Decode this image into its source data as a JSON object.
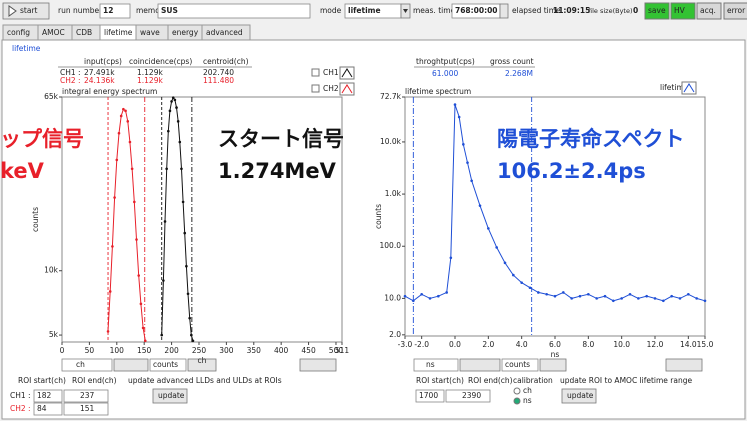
{
  "toolbar": {
    "start": "start",
    "run_label": "run number",
    "run": 12,
    "memo_label": "memo",
    "memo": "SUS",
    "mode_label": "mode",
    "mode": "lifetime",
    "meas_label": "meas. time",
    "meas": "768:00:00",
    "elapsed_label": "elapsed time",
    "elapsed": "11:09:15",
    "size_label": "file size(Byte)",
    "size": 0,
    "buttons": [
      "save",
      "HV",
      "acq.",
      "error"
    ]
  },
  "tabs": [
    "config",
    "AMOC",
    "CDB",
    "lifetime",
    "wave",
    "energy",
    "advanced"
  ],
  "page_label": "lifetime",
  "left_table": {
    "headers": [
      "input(cps)",
      "coincidence(cps)",
      "centroid(ch)"
    ],
    "rows": [
      [
        "CH1 :",
        "27.491k",
        "1.129k",
        "202.740"
      ],
      [
        "CH2 :",
        "24.136k",
        "1.129k",
        "111.480"
      ]
    ]
  },
  "left_panel": {
    "x_unit": "ch",
    "y_unit": "counts",
    "roi_headers": [
      "ROI start(ch)",
      "ROI end(ch)"
    ],
    "note": "update advanced LLDs and ULDs at ROIs",
    "rows": [
      {
        "label": "CH1 :",
        "start": 182,
        "end": 237
      },
      {
        "label": "CH2 :",
        "start": 84,
        "end": 151
      }
    ],
    "update": "update"
  },
  "right_stats": {
    "headers": [
      "throghtput(cps)",
      "gross count"
    ],
    "values": [
      "61.000",
      "2.268M"
    ]
  },
  "right_panel": {
    "x_unit": "ns",
    "y_unit": "counts",
    "roi_headers": [
      "ROI start(ch)",
      "ROI end(ch)"
    ],
    "calibration": "calibration",
    "options": [
      "ch",
      "ns"
    ],
    "note": "update ROI to AMOC lifetime range",
    "start": 1700,
    "end": 2390,
    "update": "update"
  },
  "annotations": [
    {
      "text": "ップ信号",
      "color": "#e8202a"
    },
    {
      "text": "keV",
      "color": "#e8202a"
    },
    {
      "text": "スタート信号",
      "color": "#111111"
    },
    {
      "text": "1.274MeV",
      "color": "#111111"
    },
    {
      "text": "陽電子寿命スペクト",
      "color": "#1f4fd6"
    },
    {
      "text": "106.2±2.4ps",
      "color": "#1f4fd6"
    }
  ],
  "chart_data": [
    {
      "type": "line",
      "title": "integral energy spectrum",
      "x_label": "ch",
      "y_label": "counts",
      "log_y": true,
      "markers": true,
      "xlim": [
        0,
        511
      ],
      "xticks": [
        0,
        50,
        100,
        150,
        200,
        250,
        300,
        350,
        400,
        450,
        500,
        511
      ],
      "ylim": [
        4640,
        65000
      ],
      "yticks": [
        {
          "value": 65000,
          "label": "65k"
        },
        {
          "value": 10000,
          "label": "10k"
        },
        {
          "value": 5000,
          "label": "5k"
        }
      ],
      "series": [
        {
          "name": "CH1",
          "color": "#111111",
          "x": [
            182,
            185,
            188,
            191,
            194,
            197,
            200,
            203,
            206,
            209,
            212,
            215,
            218,
            221,
            224,
            227,
            230,
            233,
            236,
            239
          ],
          "values": [
            5000,
            9000,
            17000,
            30000,
            45000,
            56000,
            62000,
            64500,
            63000,
            58000,
            50000,
            40000,
            30000,
            21000,
            15000,
            10500,
            7800,
            6000,
            5000,
            4700
          ]
        },
        {
          "name": "CH2",
          "color": "#e8202a",
          "x": [
            84,
            88,
            92,
            96,
            100,
            104,
            108,
            112,
            116,
            120,
            124,
            128,
            132,
            136,
            140,
            144,
            148,
            152
          ],
          "values": [
            5200,
            8000,
            13000,
            22000,
            33000,
            44000,
            53000,
            57000,
            56000,
            50000,
            40000,
            30000,
            21000,
            14000,
            9500,
            7000,
            5400,
            4700
          ]
        }
      ]
    },
    {
      "type": "line",
      "title": "lifetime spectrum",
      "x_label": "ns",
      "y_label": "counts",
      "log_y": true,
      "markers": true,
      "xlim": [
        -3,
        15
      ],
      "xticks": [
        {
          "value": -3,
          "label": "-3.0"
        },
        {
          "value": -2,
          "label": "-2.0"
        },
        {
          "value": 0,
          "label": "0.0"
        },
        {
          "value": 2,
          "label": "2.0"
        },
        {
          "value": 4,
          "label": "4.0"
        },
        {
          "value": 6,
          "label": "6.0"
        },
        {
          "value": 8,
          "label": "8.0"
        },
        {
          "value": 10,
          "label": "10.0"
        },
        {
          "value": 12,
          "label": "12.0"
        },
        {
          "value": 14,
          "label": "14.0"
        },
        {
          "value": 15,
          "label": "15.0"
        }
      ],
      "ylim": [
        1.9,
        72700
      ],
      "yticks": [
        {
          "value": 72700,
          "label": "72.7k"
        },
        {
          "value": 10000,
          "label": "10.0k"
        },
        {
          "value": 1000,
          "label": "1.0k"
        },
        {
          "value": 100,
          "label": "100.0"
        },
        {
          "value": 10,
          "label": "10.0"
        },
        {
          "value": 2,
          "label": "2.0"
        }
      ],
      "roi_x": [
        -2.5,
        4.6
      ],
      "roi_color": "#1f4fd6",
      "series": [
        {
          "name": "lifetime",
          "color": "#1f4fd6",
          "x": [
            -3,
            -2.5,
            -2,
            -1.5,
            -1,
            -0.5,
            -0.25,
            0,
            0.25,
            0.5,
            0.75,
            1,
            1.5,
            2,
            2.5,
            3,
            3.5,
            4,
            4.5,
            5,
            5.5,
            6,
            6.5,
            7,
            7.5,
            8,
            8.5,
            9,
            9.5,
            10,
            10.5,
            11,
            11.5,
            12,
            12.5,
            13,
            13.5,
            14,
            14.5,
            15
          ],
          "values": [
            11,
            9,
            12,
            10,
            11,
            13,
            60,
            52000,
            30000,
            9000,
            4000,
            1800,
            600,
            220,
            95,
            48,
            28,
            20,
            16,
            13,
            12,
            11,
            13,
            10,
            11,
            12,
            10,
            11,
            9,
            10,
            12,
            10,
            11,
            10,
            9,
            11,
            10,
            12,
            10,
            9
          ]
        }
      ]
    }
  ]
}
